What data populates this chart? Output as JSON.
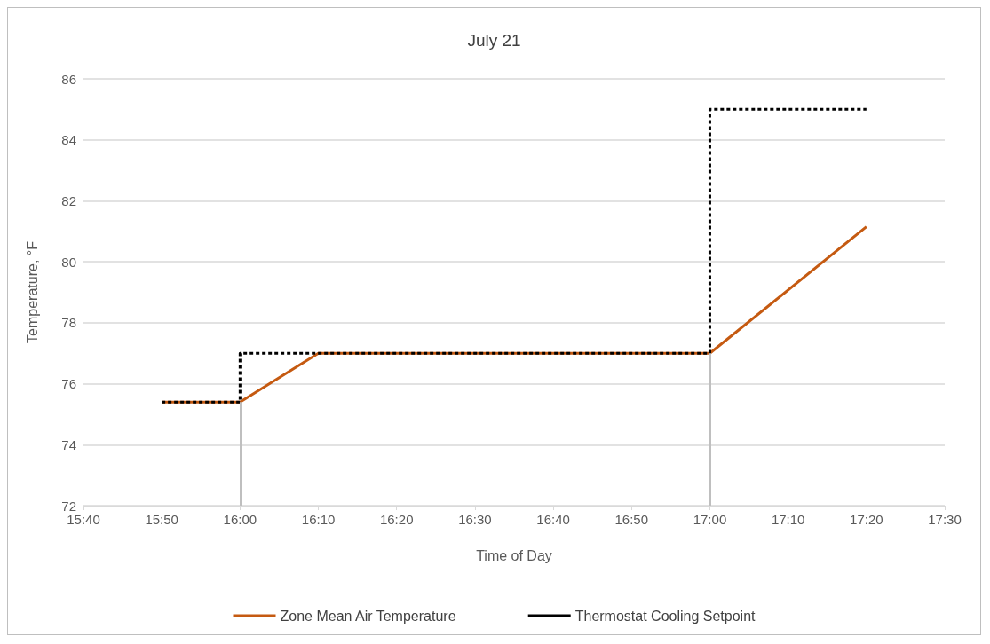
{
  "chart_data": {
    "type": "line",
    "title": "July 21",
    "xlabel": "Time of Day",
    "ylabel": "Temperature, °F",
    "x": [
      15.8333,
      16,
      16.1667,
      17,
      17.3333
    ],
    "series": [
      {
        "name": "Zone Mean Air Temperature",
        "color": "#c55a11",
        "values": [
          75.4,
          75.4,
          77,
          77,
          81.15
        ],
        "line_style": "solid"
      },
      {
        "name": "Thermostat Cooling Setpoint",
        "type": "step",
        "color": "#000000",
        "values": [
          75.4,
          77,
          77,
          85,
          85
        ],
        "line_style": "dashed"
      }
    ],
    "xlim": [
      15.6667,
      17.5
    ],
    "xticks": [
      {
        "value": 15.6667,
        "label": "15:40"
      },
      {
        "value": 15.8333,
        "label": "15:50"
      },
      {
        "value": 16,
        "label": "16:00"
      },
      {
        "value": 16.1667,
        "label": "16:10"
      },
      {
        "value": 16.3333,
        "label": "16:20"
      },
      {
        "value": 16.5,
        "label": "16:30"
      },
      {
        "value": 16.6667,
        "label": "16:40"
      },
      {
        "value": 16.8333,
        "label": "16:50"
      },
      {
        "value": 17,
        "label": "17:00"
      },
      {
        "value": 17.1667,
        "label": "17:10"
      },
      {
        "value": 17.3333,
        "label": "17:20"
      },
      {
        "value": 17.5,
        "label": "17:30"
      }
    ],
    "ylim": [
      72,
      86
    ],
    "yticks": [
      72,
      74,
      76,
      78,
      80,
      82,
      84,
      86
    ],
    "ref_lines": [
      {
        "axis": "x",
        "value": 16,
        "color": "#bfbfbf"
      },
      {
        "axis": "x",
        "value": 17,
        "color": "#bfbfbf"
      }
    ],
    "grid": "y",
    "legend": "bottom",
    "marker": "none"
  }
}
